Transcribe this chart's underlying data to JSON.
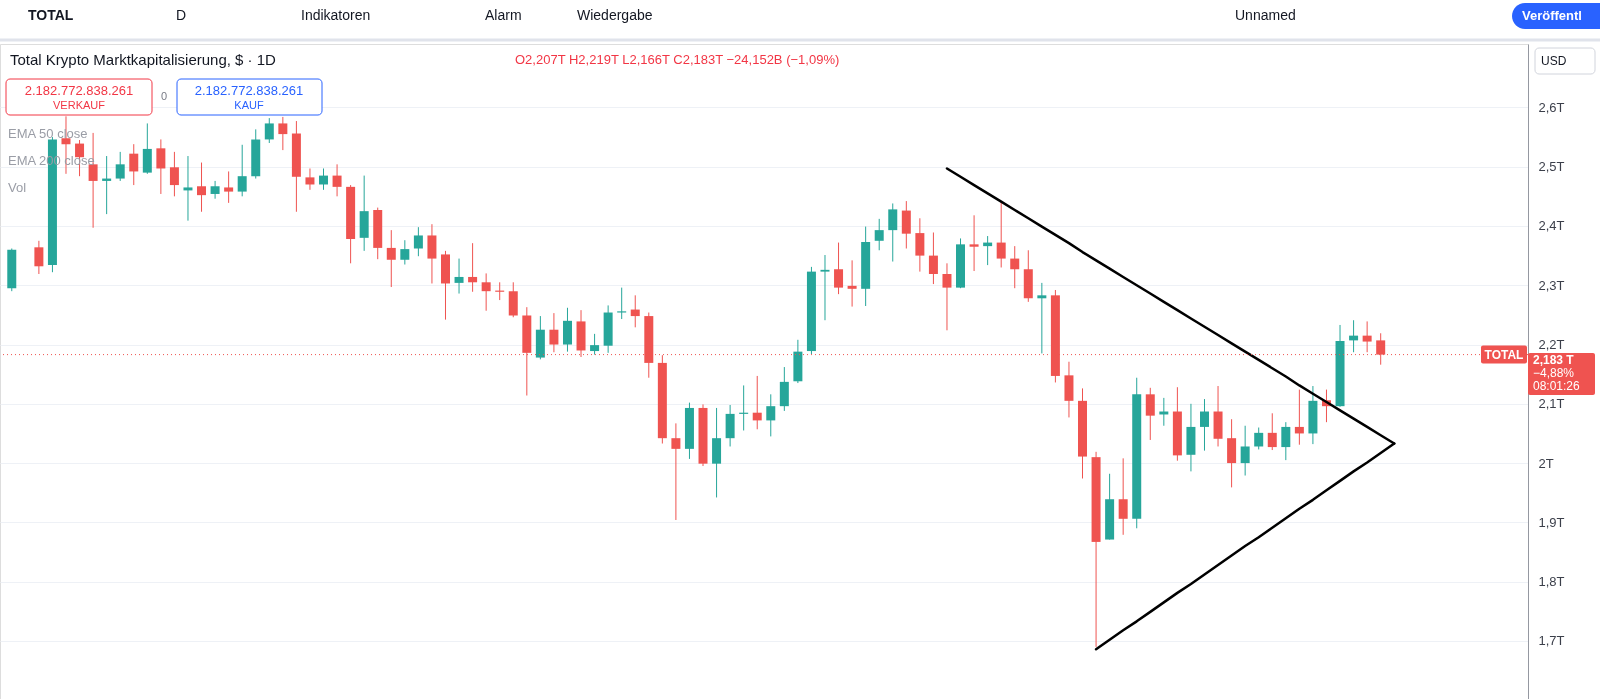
{
  "chart_data": {
    "type": "candlestick",
    "title": "Total Krypto Marktkapitalisierung, $ · 1D",
    "subtitle": "O2,207T H2,219T L2,166T C2,183T −24,152B (−1,09%)",
    "categories": [
      null,
      null,
      null,
      null,
      null,
      null,
      null,
      null,
      null,
      null,
      null,
      null,
      null,
      null,
      null,
      null,
      null,
      null,
      null,
      null,
      null,
      null,
      null,
      null,
      null,
      null,
      null,
      null,
      null,
      null,
      null,
      null,
      null,
      null,
      null,
      null,
      null,
      null,
      null,
      null,
      null,
      null,
      null,
      null,
      null,
      null,
      null,
      null,
      null,
      null,
      null,
      null,
      null,
      null,
      null,
      null,
      null,
      null,
      null,
      null,
      null,
      null,
      null,
      null,
      null,
      null,
      null,
      null,
      null,
      null,
      null,
      null,
      null,
      null,
      null,
      null,
      null,
      null,
      null,
      null,
      null,
      null,
      null,
      null,
      null,
      null,
      null,
      null,
      null,
      null,
      null,
      null,
      null,
      null,
      null,
      null,
      null,
      null,
      null,
      null,
      null,
      null,
      null,
      null,
      null,
      null,
      null,
      null,
      null,
      null,
      null,
      null
    ],
    "ohlc": [
      [
        2.295,
        2.362,
        2.29,
        2.36
      ],
      null,
      [
        2.364,
        2.375,
        2.319,
        2.332
      ],
      [
        2.334,
        2.55,
        2.322,
        2.546
      ],
      [
        2.548,
        2.585,
        2.488,
        2.538
      ],
      [
        2.539,
        2.545,
        2.484,
        2.516
      ],
      [
        2.504,
        2.557,
        2.397,
        2.476
      ],
      [
        2.476,
        2.518,
        2.42,
        2.48
      ],
      [
        2.48,
        2.525,
        2.476,
        2.504
      ],
      [
        2.522,
        2.538,
        2.469,
        2.492
      ],
      [
        2.49,
        2.573,
        2.488,
        2.53
      ],
      [
        2.531,
        2.546,
        2.454,
        2.497
      ],
      [
        2.499,
        2.525,
        2.45,
        2.469
      ],
      [
        2.46,
        2.518,
        2.409,
        2.465
      ],
      [
        2.467,
        2.507,
        2.424,
        2.452
      ],
      [
        2.454,
        2.476,
        2.446,
        2.467
      ],
      [
        2.465,
        2.492,
        2.439,
        2.458
      ],
      [
        2.458,
        2.537,
        2.45,
        2.484
      ],
      [
        2.484,
        2.563,
        2.48,
        2.546
      ],
      [
        2.546,
        2.582,
        2.54,
        2.573
      ],
      [
        2.573,
        2.584,
        2.528,
        2.555
      ],
      [
        2.556,
        2.577,
        2.424,
        2.483
      ],
      [
        2.482,
        2.497,
        2.461,
        2.47
      ],
      [
        2.47,
        2.497,
        2.461,
        2.485
      ],
      [
        2.485,
        2.504,
        2.45,
        2.466
      ],
      [
        2.466,
        2.469,
        2.337,
        2.378
      ],
      [
        2.38,
        2.485,
        2.358,
        2.425
      ],
      [
        2.427,
        2.431,
        2.344,
        2.363
      ],
      [
        2.363,
        2.393,
        2.297,
        2.343
      ],
      [
        2.343,
        2.376,
        2.335,
        2.361
      ],
      [
        2.362,
        2.398,
        2.349,
        2.384
      ],
      [
        2.384,
        2.403,
        2.303,
        2.345
      ],
      [
        2.352,
        2.358,
        2.242,
        2.303
      ],
      [
        2.304,
        2.345,
        2.286,
        2.314
      ],
      [
        2.314,
        2.371,
        2.289,
        2.305
      ],
      [
        2.305,
        2.32,
        2.257,
        2.29
      ],
      [
        2.291,
        2.305,
        2.275,
        2.289
      ],
      [
        2.29,
        2.305,
        2.246,
        2.249
      ],
      [
        2.249,
        2.263,
        2.114,
        2.186
      ],
      [
        2.178,
        2.248,
        2.175,
        2.225
      ],
      [
        2.225,
        2.253,
        2.187,
        2.2
      ],
      [
        2.2,
        2.262,
        2.188,
        2.24
      ],
      [
        2.239,
        2.258,
        2.179,
        2.19
      ],
      [
        2.189,
        2.218,
        2.183,
        2.199
      ],
      [
        2.198,
        2.266,
        2.186,
        2.254
      ],
      [
        2.254,
        2.296,
        2.243,
        2.256
      ],
      [
        2.259,
        2.283,
        2.229,
        2.248
      ],
      [
        2.248,
        2.254,
        2.144,
        2.169
      ],
      [
        2.169,
        2.182,
        2.033,
        2.042
      ],
      [
        2.042,
        2.067,
        1.904,
        2.024
      ],
      [
        2.024,
        2.102,
        2.007,
        2.093
      ],
      [
        2.093,
        2.099,
        1.995,
        1.999
      ],
      [
        1.999,
        2.093,
        1.942,
        2.042
      ],
      [
        2.042,
        2.098,
        2.028,
        2.083
      ],
      [
        2.083,
        2.131,
        2.055,
        2.085
      ],
      [
        2.085,
        2.147,
        2.057,
        2.072
      ],
      [
        2.072,
        2.116,
        2.045,
        2.096
      ],
      [
        2.096,
        2.162,
        2.088,
        2.137
      ],
      [
        2.138,
        2.208,
        2.135,
        2.188
      ],
      [
        2.189,
        2.331,
        2.184,
        2.323
      ],
      [
        2.323,
        2.351,
        2.241,
        2.326
      ],
      [
        2.327,
        2.372,
        2.285,
        2.296
      ],
      [
        2.299,
        2.342,
        2.264,
        2.294
      ],
      [
        2.294,
        2.399,
        2.265,
        2.373
      ],
      [
        2.375,
        2.412,
        2.359,
        2.393
      ],
      [
        2.393,
        2.438,
        2.34,
        2.428
      ],
      [
        2.426,
        2.442,
        2.362,
        2.387
      ],
      [
        2.388,
        2.413,
        2.323,
        2.35
      ],
      [
        2.35,
        2.389,
        2.302,
        2.319
      ],
      [
        2.319,
        2.337,
        2.224,
        2.296
      ],
      [
        2.296,
        2.379,
        2.295,
        2.369
      ],
      [
        2.369,
        2.418,
        2.324,
        2.365
      ],
      [
        2.366,
        2.383,
        2.334,
        2.372
      ],
      [
        2.372,
        2.442,
        2.33,
        2.345
      ],
      [
        2.345,
        2.366,
        2.295,
        2.327
      ],
      [
        2.327,
        2.359,
        2.272,
        2.278
      ],
      [
        2.278,
        2.304,
        2.185,
        2.283
      ],
      [
        2.283,
        2.292,
        2.136,
        2.147
      ],
      [
        2.148,
        2.171,
        2.077,
        2.105
      ],
      [
        2.105,
        2.126,
        1.974,
        2.011
      ],
      [
        2.01,
        2.019,
        1.69,
        1.867
      ],
      [
        1.871,
        1.982,
        1.871,
        1.939
      ],
      [
        1.939,
        2.008,
        1.879,
        1.906
      ],
      [
        1.906,
        2.144,
        1.89,
        2.116
      ],
      [
        2.116,
        2.127,
        2.039,
        2.08
      ],
      [
        2.082,
        2.11,
        2.063,
        2.087
      ],
      [
        2.087,
        2.128,
        2.004,
        2.013
      ],
      [
        2.014,
        2.1,
        1.986,
        2.061
      ],
      [
        2.061,
        2.108,
        2.021,
        2.087
      ],
      [
        2.087,
        2.13,
        2.028,
        2.041
      ],
      [
        2.042,
        2.074,
        1.959,
        2.0
      ],
      [
        2.0,
        2.063,
        1.979,
        2.028
      ],
      [
        2.028,
        2.06,
        2.023,
        2.051
      ],
      [
        2.051,
        2.084,
        2.022,
        2.027
      ],
      [
        2.027,
        2.069,
        2.005,
        2.061
      ],
      [
        2.061,
        2.124,
        2.031,
        2.05
      ],
      [
        2.05,
        2.13,
        2.032,
        2.105
      ],
      [
        2.106,
        2.124,
        2.069,
        2.096
      ],
      [
        2.096,
        2.233,
        2.095,
        2.206
      ],
      [
        2.207,
        2.241,
        2.187,
        2.215
      ],
      [
        2.215,
        2.239,
        2.187,
        2.205
      ],
      [
        2.207,
        2.219,
        2.166,
        2.183
      ],
      null,
      null,
      null,
      null,
      null,
      null,
      null,
      null,
      null,
      null
    ],
    "colors": [
      "#26a69a",
      null,
      "#ef5350",
      "#26a69a",
      "#ef5350",
      "#ef5350",
      "#ef5350",
      "#26a69a",
      "#26a69a",
      "#ef5350",
      "#26a69a",
      "#ef5350",
      "#ef5350",
      "#26a69a",
      "#ef5350",
      "#26a69a",
      "#ef5350",
      "#26a69a",
      "#26a69a",
      "#26a69a",
      "#ef5350",
      "#ef5350",
      "#ef5350",
      "#26a69a",
      "#ef5350",
      "#ef5350",
      "#26a69a",
      "#ef5350",
      "#ef5350",
      "#26a69a",
      "#26a69a",
      "#ef5350",
      "#ef5350",
      "#26a69a",
      "#ef5350",
      "#ef5350",
      "#ef5350",
      "#ef5350",
      "#ef5350",
      "#26a69a",
      "#ef5350",
      "#26a69a",
      "#ef5350",
      "#26a69a",
      "#26a69a",
      "#26a69a",
      "#ef5350",
      "#ef5350",
      "#ef5350",
      "#ef5350",
      "#26a69a",
      "#ef5350",
      "#26a69a",
      "#26a69a",
      "#26a69a",
      "#ef5350",
      "#26a69a",
      "#26a69a",
      "#26a69a",
      "#26a69a",
      "#26a69a",
      "#ef5350",
      "#ef5350",
      "#26a69a",
      "#26a69a",
      "#26a69a",
      "#ef5350",
      "#ef5350",
      "#ef5350",
      "#ef5350",
      "#26a69a",
      "#ef5350",
      "#26a69a",
      "#ef5350",
      "#ef5350",
      "#ef5350",
      "#26a69a",
      "#ef5350",
      "#ef5350",
      "#ef5350",
      "#ef5350",
      "#26a69a",
      "#ef5350",
      "#26a69a",
      "#ef5350",
      "#26a69a",
      "#ef5350",
      "#26a69a",
      "#26a69a",
      "#ef5350",
      "#ef5350",
      "#26a69a",
      "#26a69a",
      "#ef5350",
      "#26a69a",
      "#ef5350",
      "#26a69a",
      "#ef5350",
      "#26a69a",
      "#26a69a",
      "#ef5350",
      "#ef5350",
      null,
      null,
      null,
      null,
      null,
      null,
      null,
      null,
      null,
      null
    ],
    "series": [
      {
        "type": "line",
        "color": "#000000",
        "values": [
          null,
          null,
          null,
          null,
          null,
          null,
          null,
          null,
          null,
          null,
          null,
          null,
          null,
          null,
          null,
          null,
          null,
          null,
          null,
          null,
          null,
          null,
          null,
          null,
          null,
          null,
          null,
          null,
          null,
          null,
          null,
          null,
          null,
          null,
          null,
          null,
          null,
          null,
          null,
          null,
          null,
          null,
          null,
          null,
          null,
          null,
          null,
          null,
          null,
          null,
          null,
          null,
          null,
          null,
          null,
          null,
          null,
          null,
          null,
          null,
          null,
          null,
          null,
          null,
          null,
          null,
          null,
          null,
          null,
          2.497,
          2.483,
          2.469,
          2.455,
          2.441,
          2.427,
          2.413,
          2.399,
          2.385,
          2.371,
          2.356,
          2.342,
          2.328,
          2.314,
          2.3,
          2.286,
          2.272,
          2.258,
          2.244,
          2.23,
          2.216,
          2.202,
          2.188,
          2.174,
          2.16,
          2.146,
          2.131,
          2.117,
          2.103,
          2.089,
          2.075,
          2.061,
          2.047,
          2.033,
          null,
          null,
          null,
          null,
          null,
          null,
          null,
          null,
          null
        ]
      },
      {
        "type": "line",
        "color": "#000000",
        "values": [
          null,
          null,
          null,
          null,
          null,
          null,
          null,
          null,
          null,
          null,
          null,
          null,
          null,
          null,
          null,
          null,
          null,
          null,
          null,
          null,
          null,
          null,
          null,
          null,
          null,
          null,
          null,
          null,
          null,
          null,
          null,
          null,
          null,
          null,
          null,
          null,
          null,
          null,
          null,
          null,
          null,
          null,
          null,
          null,
          null,
          null,
          null,
          null,
          null,
          null,
          null,
          null,
          null,
          null,
          null,
          null,
          null,
          null,
          null,
          null,
          null,
          null,
          null,
          null,
          null,
          null,
          null,
          null,
          null,
          null,
          null,
          null,
          null,
          null,
          null,
          null,
          null,
          null,
          null,
          null,
          1.686,
          1.702,
          1.718,
          1.733,
          1.749,
          1.765,
          1.781,
          1.796,
          1.812,
          1.828,
          1.844,
          1.86,
          1.875,
          1.891,
          1.907,
          1.923,
          1.938,
          1.954,
          1.97,
          1.986,
          2.001,
          2.017,
          2.033,
          null,
          null,
          null,
          null,
          null,
          null,
          null,
          null,
          null
        ]
      }
    ],
    "ylim": [
      1.602,
      2.707
    ],
    "yticks": [
      {
        "value": 1.7,
        "label": "1,7T"
      },
      {
        "value": 1.8,
        "label": "1,8T"
      },
      {
        "value": 1.9,
        "label": "1,9T"
      },
      {
        "value": 2,
        "label": "2T"
      },
      {
        "value": 2.1,
        "label": "2,1T"
      },
      {
        "value": 2.2,
        "label": "2,2T"
      },
      {
        "value": 2.3,
        "label": "2,3T"
      },
      {
        "value": 2.4,
        "label": "2,4T"
      },
      {
        "value": 2.5,
        "label": "2,5T"
      },
      {
        "value": 2.6,
        "label": "2,6T"
      }
    ],
    "grid": "y",
    "ref_lines": [
      {
        "axis": "y",
        "value": 2.183,
        "label": "TOTAL",
        "color": "#ef5350",
        "line_style": "dotted"
      }
    ],
    "annotations": [
      "TOTAL",
      "D",
      "Indikatoren",
      "Alarm",
      "Wiedergabe",
      "Unnamed",
      "Veröffentl",
      "2.182.772.838.261",
      "VERKAUF",
      "0",
      "2.182.772.838.261",
      "KAUF",
      "EMA 50 close",
      "EMA 200 close",
      "Vol",
      "USD",
      "2,183 T",
      "−4,88%",
      "08:01:26"
    ]
  }
}
